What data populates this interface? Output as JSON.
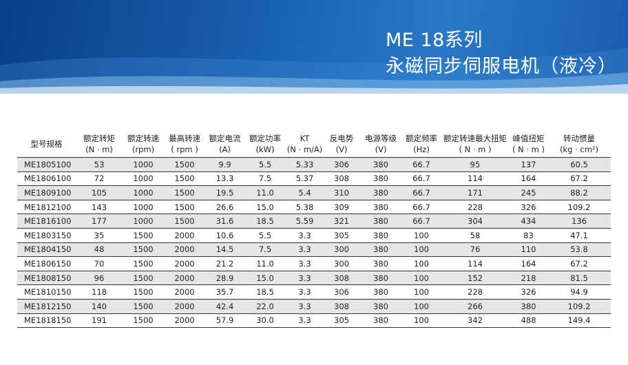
{
  "header": {
    "title": "ME 18系列",
    "subtitle": "永磁同步伺服电机（液冷）"
  },
  "table": {
    "columns": [
      {
        "name": "型号规格"
      },
      {
        "name": "额定转矩",
        "unit": "(N · m)"
      },
      {
        "name": "额定转速",
        "unit": "(rpm)"
      },
      {
        "name": "最高转速",
        "unit": "( rpm )"
      },
      {
        "name": "额定电流",
        "unit": "(A)"
      },
      {
        "name": "额定功率",
        "unit": "(kW)"
      },
      {
        "name": "KT",
        "unit": "(N · m/A)"
      },
      {
        "name": "反电势",
        "unit": "(V)"
      },
      {
        "name": "电源等级",
        "unit": "(V)"
      },
      {
        "name": "额定频率",
        "unit": "(Hz)"
      },
      {
        "name": "额定转速最大扭矩",
        "unit": "( N · m )"
      },
      {
        "name": "峰值扭矩",
        "unit": "( N · m )"
      },
      {
        "name": "转动惯量",
        "unit": "(kg · cm²)"
      }
    ],
    "rows": [
      [
        "ME1805100",
        "53",
        "1000",
        "1500",
        "9.9",
        "5.5",
        "5.33",
        "306",
        "380",
        "66.7",
        "95",
        "137",
        "60.5"
      ],
      [
        "ME1806100",
        "72",
        "1000",
        "1500",
        "13.3",
        "7.5",
        "5.37",
        "308",
        "380",
        "66.7",
        "114",
        "164",
        "67.2"
      ],
      [
        "ME1809100",
        "105",
        "1000",
        "1500",
        "19.5",
        "11.0",
        "5.4",
        "310",
        "380",
        "66.7",
        "171",
        "245",
        "88.2"
      ],
      [
        "ME1812100",
        "143",
        "1000",
        "1500",
        "26.6",
        "15.0",
        "5.38",
        "309",
        "380",
        "66.7",
        "228",
        "326",
        "109.2"
      ],
      [
        "ME1816100",
        "177",
        "1000",
        "1500",
        "31.6",
        "18.5",
        "5.59",
        "321",
        "380",
        "66.7",
        "304",
        "434",
        "136"
      ],
      [
        "ME1803150",
        "35",
        "1500",
        "2000",
        "10.6",
        "5.5",
        "3.3",
        "305",
        "380",
        "100",
        "58",
        "83",
        "47.1"
      ],
      [
        "ME1804150",
        "48",
        "1500",
        "2000",
        "14.5",
        "7.5",
        "3.3",
        "300",
        "380",
        "100",
        "76",
        "110",
        "53.8"
      ],
      [
        "ME1806150",
        "70",
        "1500",
        "2000",
        "21.2",
        "11.0",
        "3.3",
        "300",
        "380",
        "100",
        "114",
        "164",
        "67.2"
      ],
      [
        "ME1808150",
        "96",
        "1500",
        "2000",
        "28.9",
        "15.0",
        "3.3",
        "308",
        "380",
        "100",
        "152",
        "218",
        "81.5"
      ],
      [
        "ME1810150",
        "118",
        "1500",
        "2000",
        "35.7",
        "18.5",
        "3.3",
        "306",
        "380",
        "100",
        "228",
        "326",
        "94.9"
      ],
      [
        "ME1812150",
        "140",
        "1500",
        "2000",
        "42.4",
        "22.0",
        "3.3",
        "308",
        "380",
        "100",
        "266",
        "380",
        "109.2"
      ],
      [
        "ME1818150",
        "191",
        "1500",
        "2000",
        "57.9",
        "30.0",
        "3.3",
        "305",
        "380",
        "100",
        "342",
        "488",
        "149.4"
      ]
    ]
  }
}
